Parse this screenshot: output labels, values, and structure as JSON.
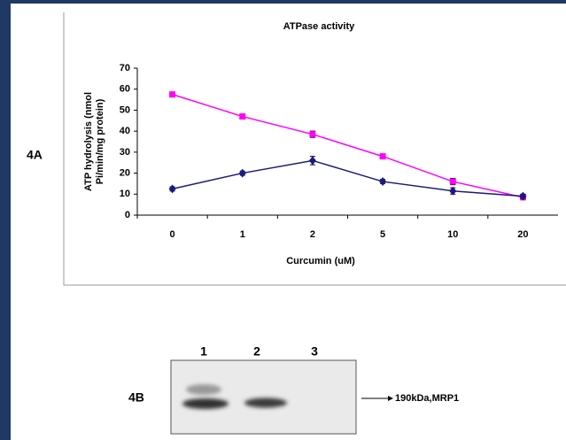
{
  "panel_labels": [
    "4A",
    "4B"
  ],
  "chart_data": {
    "type": "line",
    "title": "ATPase activity",
    "x_label": "Curcumin (uM)",
    "y_label": [
      "ATP hydrolysis (nmol",
      "Pi/min/mg protein)"
    ],
    "categories": [
      "0",
      "1",
      "2",
      "5",
      "10",
      "20"
    ],
    "series": [
      {
        "color": "#ff00ff",
        "marker": "square",
        "values": [
          57.5,
          47,
          38.5,
          28,
          16,
          8.5
        ],
        "errors": [
          1,
          1,
          1.5,
          1,
          1.5,
          1
        ]
      },
      {
        "color": "#1a1a80",
        "marker": "diamond",
        "values": [
          12.5,
          20,
          26,
          16,
          11.5,
          9
        ],
        "errors": [
          1,
          1,
          2,
          1,
          1.5,
          1
        ]
      }
    ],
    "ylim": [
      0,
      70
    ],
    "yticks": [
      0,
      10,
      20,
      30,
      40,
      50,
      60,
      70
    ],
    "grid": false
  },
  "blot": {
    "lanes": [
      "1",
      "2",
      "3"
    ],
    "annotation": "190kDa,MRP1"
  }
}
